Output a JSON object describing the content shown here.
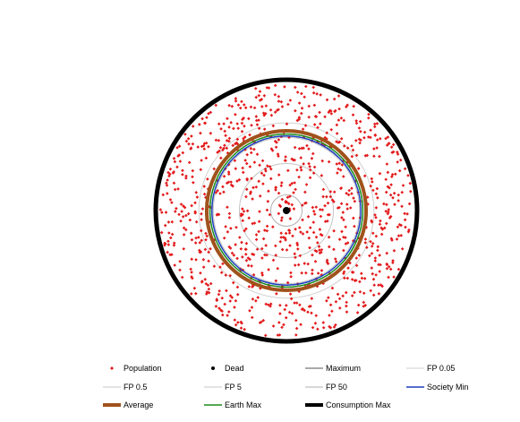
{
  "chart_data": {
    "type": "scatter",
    "projection": "polar",
    "axes_visible": false,
    "grid": false,
    "legend_placement": "bottom",
    "center": [
      0,
      0
    ],
    "r_max": 1.0,
    "series": [
      {
        "name": "Population",
        "kind": "points",
        "color": "#e31a1c",
        "marker": "diamond",
        "count": 1000,
        "r_range": [
          0.0,
          1.0
        ]
      },
      {
        "name": "Dead",
        "kind": "points",
        "color": "#000000",
        "marker": "circle",
        "points": [
          [
            0,
            0
          ]
        ]
      },
      {
        "name": "Maximum",
        "kind": "ring",
        "r": 1.0,
        "color": "#555555",
        "weight": "thin"
      },
      {
        "name": "FP 0.05",
        "kind": "ring",
        "r": 0.67,
        "color": "#cfcfcf",
        "weight": "thin"
      },
      {
        "name": "FP 0.5",
        "kind": "ring",
        "r": 0.56,
        "color": "#c4c4c4",
        "weight": "thin"
      },
      {
        "name": "FP 5",
        "kind": "ring",
        "r": 0.36,
        "color": "#c4c4c4",
        "weight": "thin"
      },
      {
        "name": "FP 50",
        "kind": "ring",
        "r": 0.12,
        "color": "#b0b0b0",
        "weight": "thin"
      },
      {
        "name": "Society Min",
        "kind": "ring",
        "r": 0.57,
        "color": "#1f3fbf",
        "weight": "medium"
      },
      {
        "name": "Average",
        "kind": "ring",
        "r": 0.61,
        "color": "#a0521c",
        "weight": "thick"
      },
      {
        "name": "Earth Max",
        "kind": "ring",
        "r": 0.585,
        "color": "#1a8c1a",
        "weight": "medium"
      },
      {
        "name": "Consumption Max",
        "kind": "ring",
        "r": 1.0,
        "color": "#000000",
        "weight": "thick"
      }
    ]
  }
}
